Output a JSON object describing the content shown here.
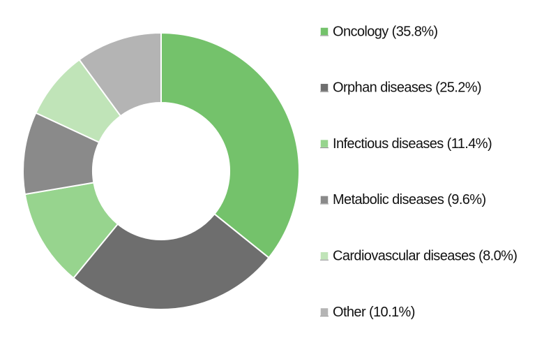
{
  "chart_data": {
    "type": "donut",
    "categories": [
      "Oncology (35.8%)",
      "Orphan diseases (25.2%)",
      "Infectious diseases (11.4%)",
      "Metabolic diseases (9.6%)",
      "Cardiovascular diseases (8.0%)",
      "Other (10.1%)"
    ],
    "values": [
      35.8,
      25.2,
      11.4,
      9.6,
      8.0,
      10.1
    ],
    "colors": [
      "#74c26b",
      "#6e6e6e",
      "#97d48e",
      "#8a8a8a",
      "#c0e4b8",
      "#b4b4b4"
    ],
    "legend": "right"
  }
}
